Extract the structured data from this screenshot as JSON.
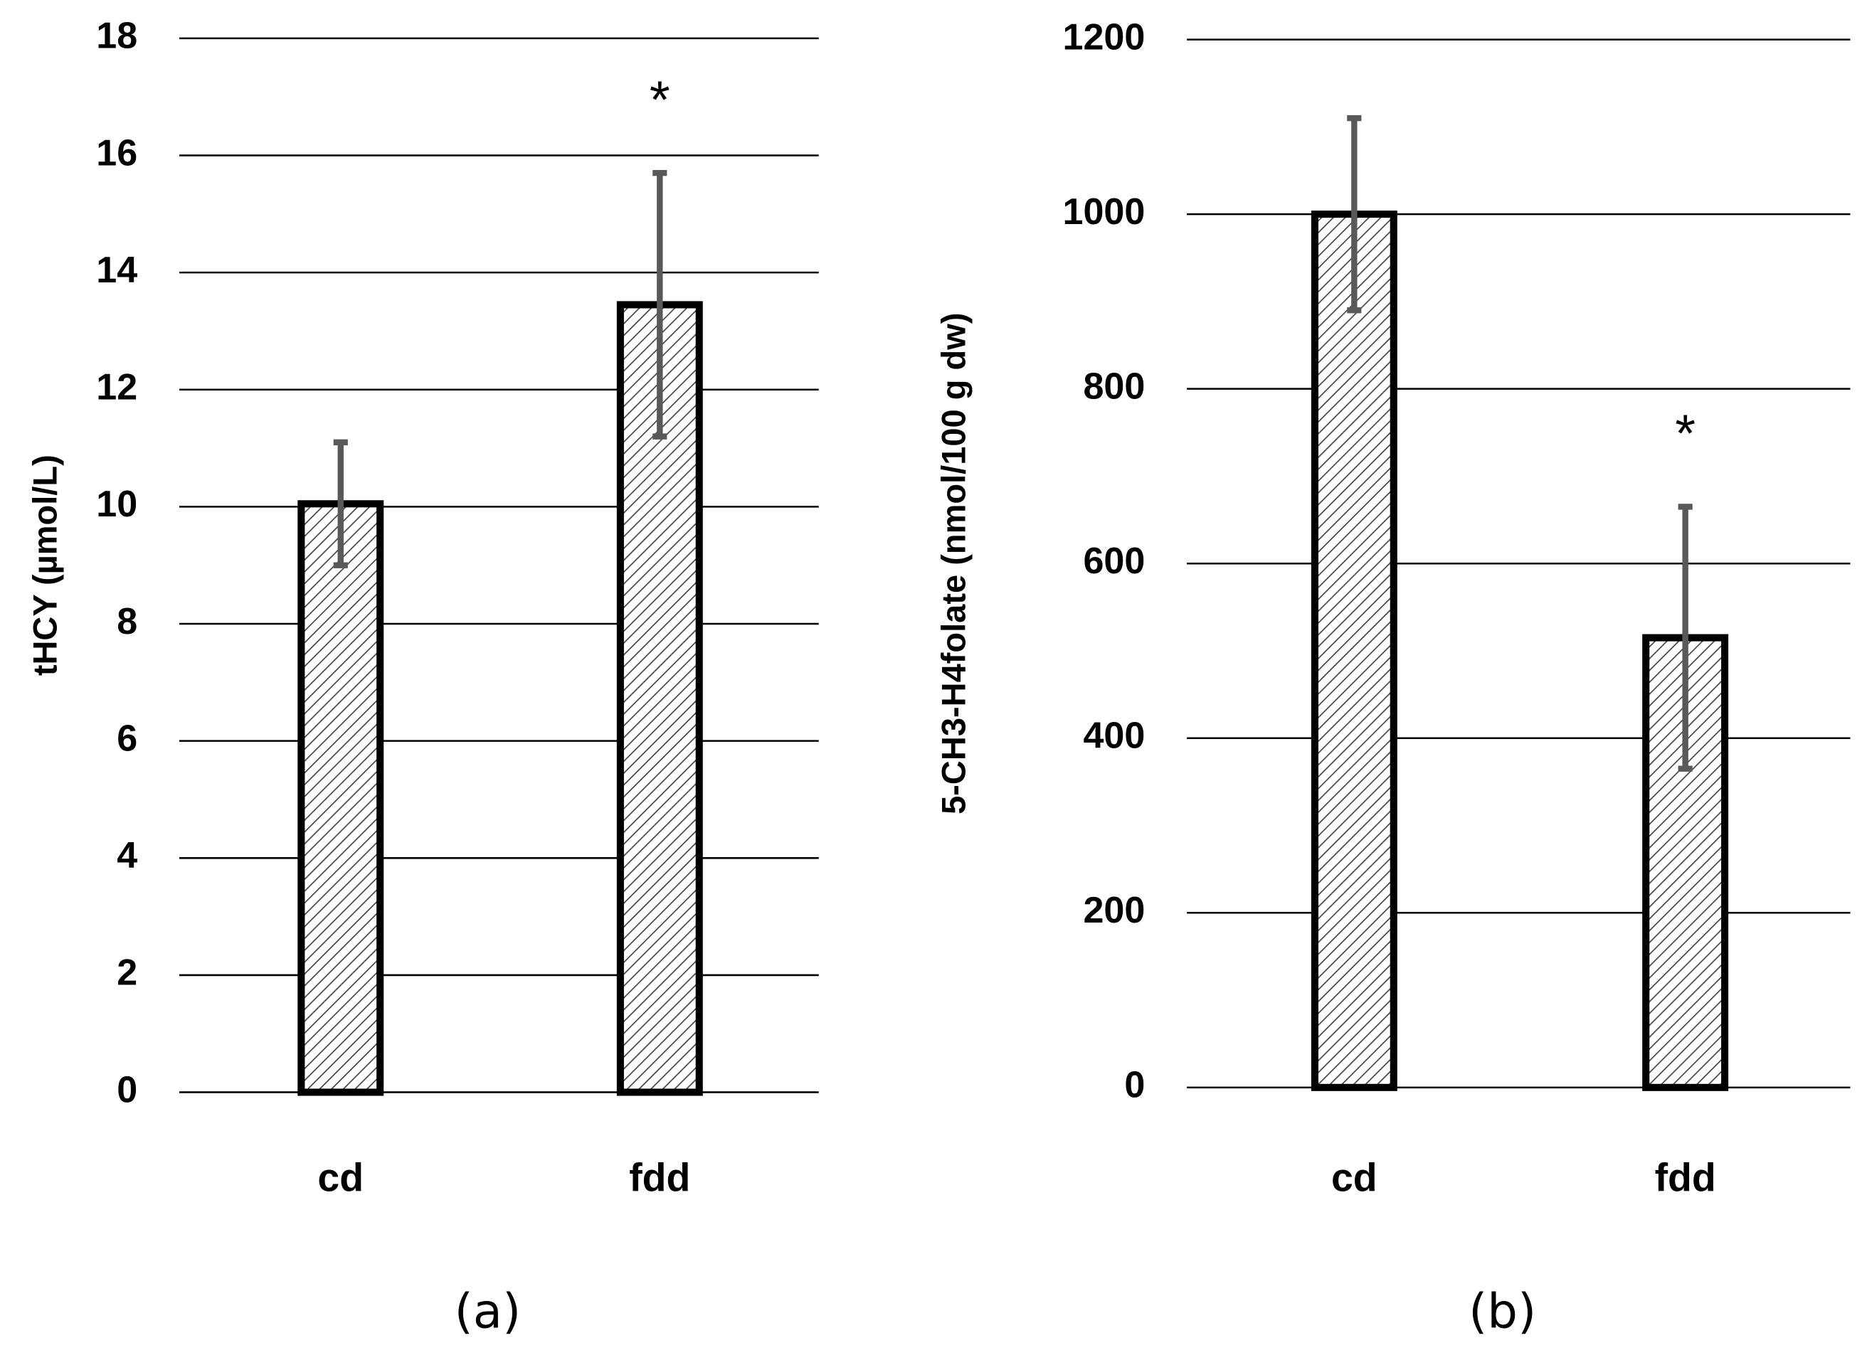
{
  "chart_data": [
    {
      "type": "bar",
      "panel_label": "(a)",
      "y_label": "tHCY (µmol/L)",
      "categories": [
        "cd",
        "fdd"
      ],
      "values": [
        10.05,
        13.45
      ],
      "errors": [
        1.05,
        2.25
      ],
      "ylim": [
        0,
        18
      ],
      "yticks": [
        0,
        2,
        4,
        6,
        8,
        10,
        12,
        14,
        16,
        18
      ],
      "grid": true,
      "annotation": {
        "text": "*",
        "category": "fdd"
      }
    },
    {
      "type": "bar",
      "panel_label": "(b)",
      "y_label": "5-CH3-H4folate (nmol/100 g dw)",
      "categories": [
        "cd",
        "fdd"
      ],
      "values": [
        1000,
        515
      ],
      "errors": [
        110,
        150
      ],
      "ylim": [
        0,
        1200
      ],
      "yticks": [
        0,
        200,
        400,
        600,
        800,
        1000,
        1200
      ],
      "grid": true,
      "annotation": {
        "text": "*",
        "category": "fdd"
      }
    }
  ]
}
